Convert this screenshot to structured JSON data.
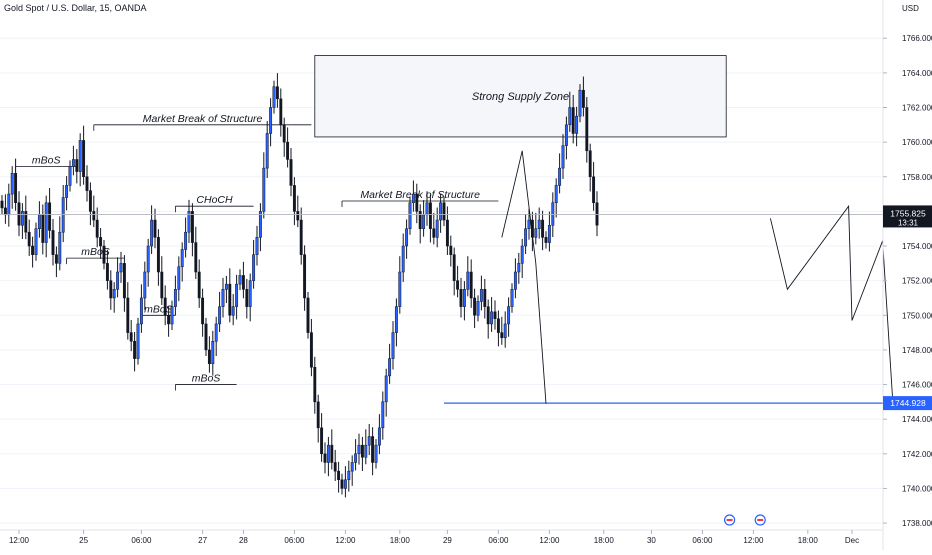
{
  "header": {
    "symbol_title": "Gold Spot / U.S. Dollar, 15, OANDA",
    "currency": "USD"
  },
  "colors": {
    "candle": "#131722",
    "candle_up_body": "#2962ff",
    "grid": "#f0f3fa",
    "crosshair": "#b2b5be",
    "target_line": "#2962ff",
    "zone_fill": "#f5f6fa",
    "zone_border": "#131722",
    "price_label_bg": "#131722",
    "target_label_bg": "#2962ff"
  },
  "chart_data": {
    "type": "candlestick",
    "y_axis": {
      "position": "right",
      "range": [
        1737.6,
        1767.4
      ],
      "ticks": [
        1738,
        1740,
        1742,
        1744,
        1746,
        1748,
        1750,
        1752,
        1754,
        1756,
        1758,
        1760,
        1762,
        1764,
        1766
      ],
      "tick_labels": [
        "1738.000",
        "1740.000",
        "1742.000",
        "1744.000",
        "1746.000",
        "1748.000",
        "1750.000",
        "1752.000",
        "1754.000",
        "1756.000",
        "1758.000",
        "1760.000",
        "1762.000",
        "1764.000",
        "1766.000"
      ]
    },
    "x_axis": {
      "tick_labels": [
        "12:00",
        "25",
        "06:00",
        "27",
        "28",
        "06:00",
        "12:00",
        "18:00",
        "29",
        "06:00",
        "12:00",
        "18:00",
        "30",
        "06:00",
        "12:00",
        "18:00",
        "Dec"
      ],
      "tick_index": [
        5,
        24,
        41,
        59,
        71,
        86,
        101,
        117,
        131,
        146,
        161,
        177,
        191,
        206,
        221,
        237,
        250
      ]
    },
    "current_price": {
      "value": 1755.825,
      "label": "1755.825",
      "countdown": "13:31"
    },
    "target_price": {
      "value": 1744.928,
      "label": "1744.928"
    },
    "closes": [
      1756.2,
      1755.8,
      1757.0,
      1758.2,
      1756.5,
      1755.2,
      1756.0,
      1754.8,
      1754.0,
      1753.5,
      1755.0,
      1755.8,
      1754.2,
      1756.5,
      1754.9,
      1753.5,
      1753.0,
      1754.8,
      1756.8,
      1757.5,
      1758.6,
      1759.0,
      1758.3,
      1760.1,
      1758.0,
      1757.2,
      1756.0,
      1755.5,
      1754.5,
      1754.0,
      1753.0,
      1752.0,
      1751.0,
      1751.5,
      1752.5,
      1753.0,
      1751.0,
      1749.0,
      1748.5,
      1747.5,
      1749.5,
      1751.0,
      1752.5,
      1754.0,
      1755.5,
      1754.5,
      1752.5,
      1751.0,
      1750.0,
      1749.5,
      1750.5,
      1751.5,
      1752.8,
      1753.8,
      1754.8,
      1756.0,
      1754.2,
      1752.5,
      1751.0,
      1749.5,
      1748.0,
      1747.2,
      1748.5,
      1749.5,
      1750.5,
      1751.5,
      1751.8,
      1750.0,
      1750.5,
      1751.8,
      1752.3,
      1751.5,
      1750.5,
      1752.0,
      1753.5,
      1754.5,
      1756.0,
      1758.5,
      1760.5,
      1762.0,
      1763.2,
      1762.5,
      1761.0,
      1760.0,
      1759.0,
      1757.5,
      1756.0,
      1755.5,
      1753.5,
      1751.0,
      1749.0,
      1747.0,
      1745.0,
      1743.5,
      1742.0,
      1741.5,
      1742.5,
      1741.5,
      1741.0,
      1740.5,
      1740.0,
      1740.5,
      1741.0,
      1741.5,
      1742.0,
      1742.5,
      1741.8,
      1742.5,
      1743.0,
      1741.5,
      1742.5,
      1743.5,
      1745.0,
      1746.5,
      1747.5,
      1749.0,
      1750.5,
      1752.5,
      1754.0,
      1755.0,
      1756.5,
      1757.0,
      1756.0,
      1755.0,
      1755.8,
      1756.5,
      1755.0,
      1754.5,
      1755.5,
      1756.5,
      1755.5,
      1754.0,
      1753.5,
      1752.0,
      1751.5,
      1750.5,
      1751.5,
      1752.5,
      1751.0,
      1750.0,
      1750.8,
      1751.5,
      1750.5,
      1749.5,
      1750.2,
      1749.8,
      1749.0,
      1748.7,
      1749.5,
      1750.5,
      1751.5,
      1752.5,
      1753.0,
      1754.0,
      1755.0,
      1755.5,
      1754.5,
      1755.0,
      1755.5,
      1754.5,
      1754.2,
      1755.2,
      1756.5,
      1757.5,
      1758.5,
      1759.8,
      1761.0,
      1762.0,
      1760.5,
      1761.5,
      1763.0,
      1762.0,
      1759.5,
      1758.0,
      1756.5,
      1755.2
    ],
    "annotations": [
      {
        "type": "zone",
        "label": "Strong Supply Zone",
        "y_top": 1765.0,
        "y_bottom": 1760.3
      },
      {
        "type": "level",
        "label": "Market Break of Structure",
        "y": 1761.0
      },
      {
        "type": "level",
        "label": "Market Break of Structure",
        "y": 1756.6
      },
      {
        "type": "level",
        "label": "CHoCH",
        "y": 1756.3
      },
      {
        "type": "level",
        "label": "mBoS",
        "y": 1758.6
      },
      {
        "type": "level",
        "label": "mBoS",
        "y": 1753.3
      },
      {
        "type": "level",
        "label": "mBoS",
        "y": 1750.0
      },
      {
        "type": "level",
        "label": "mBoS",
        "y": 1746.0
      }
    ],
    "projection_path": [
      [
        226,
        1755.6
      ],
      [
        231,
        1751.5
      ],
      [
        249,
        1756.3
      ],
      [
        250,
        1749.7
      ],
      [
        259,
        1754.3
      ],
      [
        262,
        1745.0
      ]
    ],
    "historic_path": [
      [
        160,
        1744.9
      ],
      [
        157,
        1753.0
      ],
      [
        153,
        1759.5
      ],
      [
        147,
        1754.5
      ]
    ],
    "event_markers": [
      {
        "label": ""
      },
      {
        "label": ""
      }
    ]
  }
}
